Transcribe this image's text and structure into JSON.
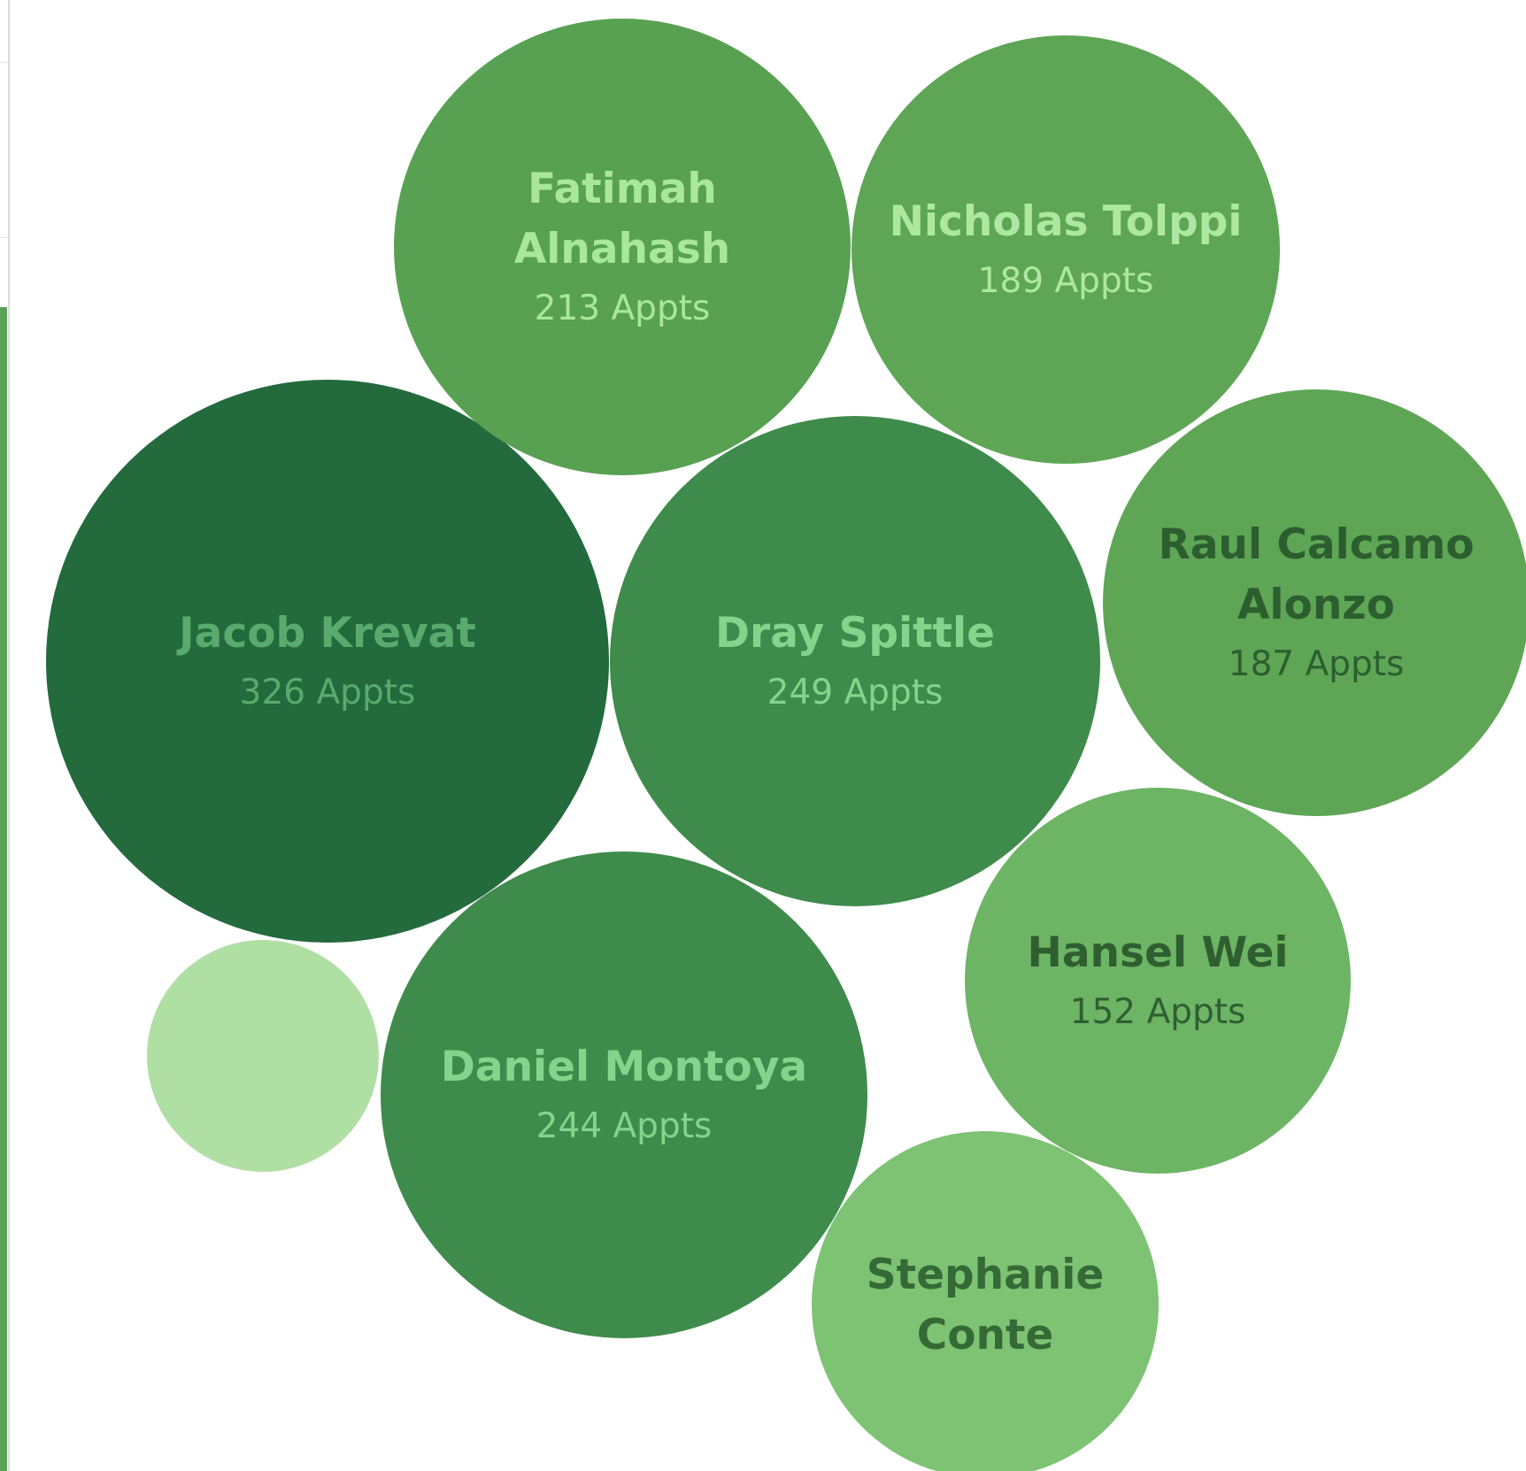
{
  "chart_data": {
    "type": "bubble",
    "title": "",
    "value_suffix": " Appts",
    "series": [
      {
        "name": "Jacob Krevat",
        "value": 326,
        "color": "#236a3d",
        "text_color": "#5aaa6d",
        "label_lines": [
          "Jacob Krevat"
        ],
        "show_value": true
      },
      {
        "name": "Dray Spittle",
        "value": 249,
        "color": "#3f8b4b",
        "text_color": "#86d38c",
        "label_lines": [
          "Dray Spittle"
        ],
        "show_value": true
      },
      {
        "name": "Daniel Montoya",
        "value": 244,
        "color": "#3f8b4b",
        "text_color": "#86d38c",
        "label_lines": [
          "Daniel Montoya"
        ],
        "show_value": true
      },
      {
        "name": "Fatimah Alnahash",
        "value": 213,
        "color": "#58a152",
        "text_color": "#a8e79c",
        "label_lines": [
          "Fatimah",
          "Alnahash"
        ],
        "show_value": true
      },
      {
        "name": "Nicholas Tolppi",
        "value": 189,
        "color": "#5ea656",
        "text_color": "#aee8a0",
        "label_lines": [
          "Nicholas Tolppi"
        ],
        "show_value": true
      },
      {
        "name": "Raul Calcamo Alonzo",
        "value": 187,
        "color": "#5ea656",
        "text_color": "#2c5e2f",
        "label_lines": [
          "Raul Calcamo",
          "Alonzo"
        ],
        "show_value": true
      },
      {
        "name": "Hansel Wei",
        "value": 152,
        "color": "#6db565",
        "text_color": "#2f5f31",
        "label_lines": [
          "Hansel Wei"
        ],
        "show_value": true
      },
      {
        "name": "Stephanie Conte",
        "value": null,
        "color": "#7ec374",
        "text_color": "#356a36",
        "label_lines": [
          "Stephanie",
          "Conte"
        ],
        "show_value": false
      },
      {
        "name": "",
        "value": null,
        "color": "#b0dfa4",
        "text_color": "#b0dfa4",
        "label_lines": [],
        "show_value": false
      }
    ]
  }
}
